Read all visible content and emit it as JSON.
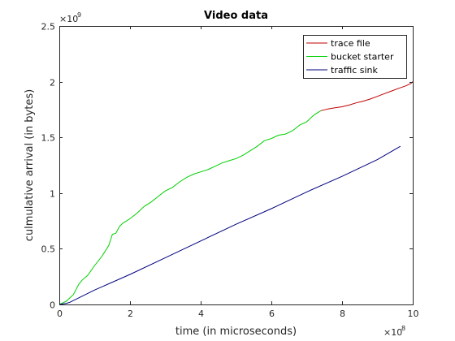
{
  "chart_data": {
    "type": "line",
    "title": "Video data",
    "xlabel": "time (in microseconds)",
    "ylabel": "culmulative arrival (in bytes)",
    "x_multiplier": {
      "base": "×10",
      "exponent": "8"
    },
    "y_multiplier": {
      "base": "×10",
      "exponent": "9"
    },
    "xlim": [
      0,
      1000000000
    ],
    "ylim": [
      0,
      2500000000
    ],
    "xticks": [
      0,
      200000000,
      400000000,
      600000000,
      800000000,
      1000000000
    ],
    "xtick_labels": [
      "0",
      "2",
      "4",
      "6",
      "8",
      "10"
    ],
    "yticks": [
      0,
      500000000,
      1000000000,
      1500000000,
      2000000000,
      2500000000
    ],
    "ytick_labels": [
      "0",
      "0.5",
      "1",
      "1.5",
      "2",
      "2.5"
    ],
    "grid": false,
    "legend_position": "top-right",
    "series": [
      {
        "name": "trace file",
        "color": "#c00000",
        "x": [
          740000000,
          760000000,
          780000000,
          800000000,
          820000000,
          840000000,
          860000000,
          880000000,
          900000000,
          920000000,
          940000000,
          960000000,
          980000000,
          995000000,
          1000000000
        ],
        "y": [
          1740000000,
          1755000000,
          1765000000,
          1775000000,
          1790000000,
          1810000000,
          1825000000,
          1845000000,
          1868000000,
          1893000000,
          1916000000,
          1940000000,
          1962000000,
          1985000000,
          2000000000
        ]
      },
      {
        "name": "bucket starter",
        "color": "#00d000",
        "x": [
          0,
          20000000,
          40000000,
          55000000,
          65000000,
          80000000,
          100000000,
          120000000,
          140000000,
          150000000,
          160000000,
          170000000,
          180000000,
          200000000,
          220000000,
          240000000,
          260000000,
          280000000,
          300000000,
          320000000,
          340000000,
          360000000,
          380000000,
          400000000,
          420000000,
          440000000,
          460000000,
          480000000,
          500000000,
          520000000,
          540000000,
          560000000,
          580000000,
          600000000,
          620000000,
          640000000,
          660000000,
          680000000,
          700000000,
          720000000,
          740000000
        ],
        "y": [
          0,
          30000000,
          90000000,
          180000000,
          220000000,
          260000000,
          350000000,
          430000000,
          530000000,
          630000000,
          640000000,
          700000000,
          730000000,
          770000000,
          820000000,
          880000000,
          920000000,
          970000000,
          1020000000,
          1050000000,
          1100000000,
          1140000000,
          1170000000,
          1190000000,
          1210000000,
          1240000000,
          1270000000,
          1290000000,
          1310000000,
          1340000000,
          1380000000,
          1420000000,
          1470000000,
          1490000000,
          1520000000,
          1530000000,
          1560000000,
          1610000000,
          1640000000,
          1700000000,
          1740000000
        ]
      },
      {
        "name": "traffic sink",
        "color": "#00007f",
        "x": [
          0,
          20000000,
          30000000,
          100000000,
          200000000,
          300000000,
          400000000,
          500000000,
          600000000,
          700000000,
          800000000,
          900000000,
          965000000
        ],
        "y": [
          0,
          10000000,
          20000000,
          130000000,
          270000000,
          420000000,
          570000000,
          720000000,
          860000000,
          1010000000,
          1150000000,
          1300000000,
          1420000000
        ]
      }
    ]
  }
}
